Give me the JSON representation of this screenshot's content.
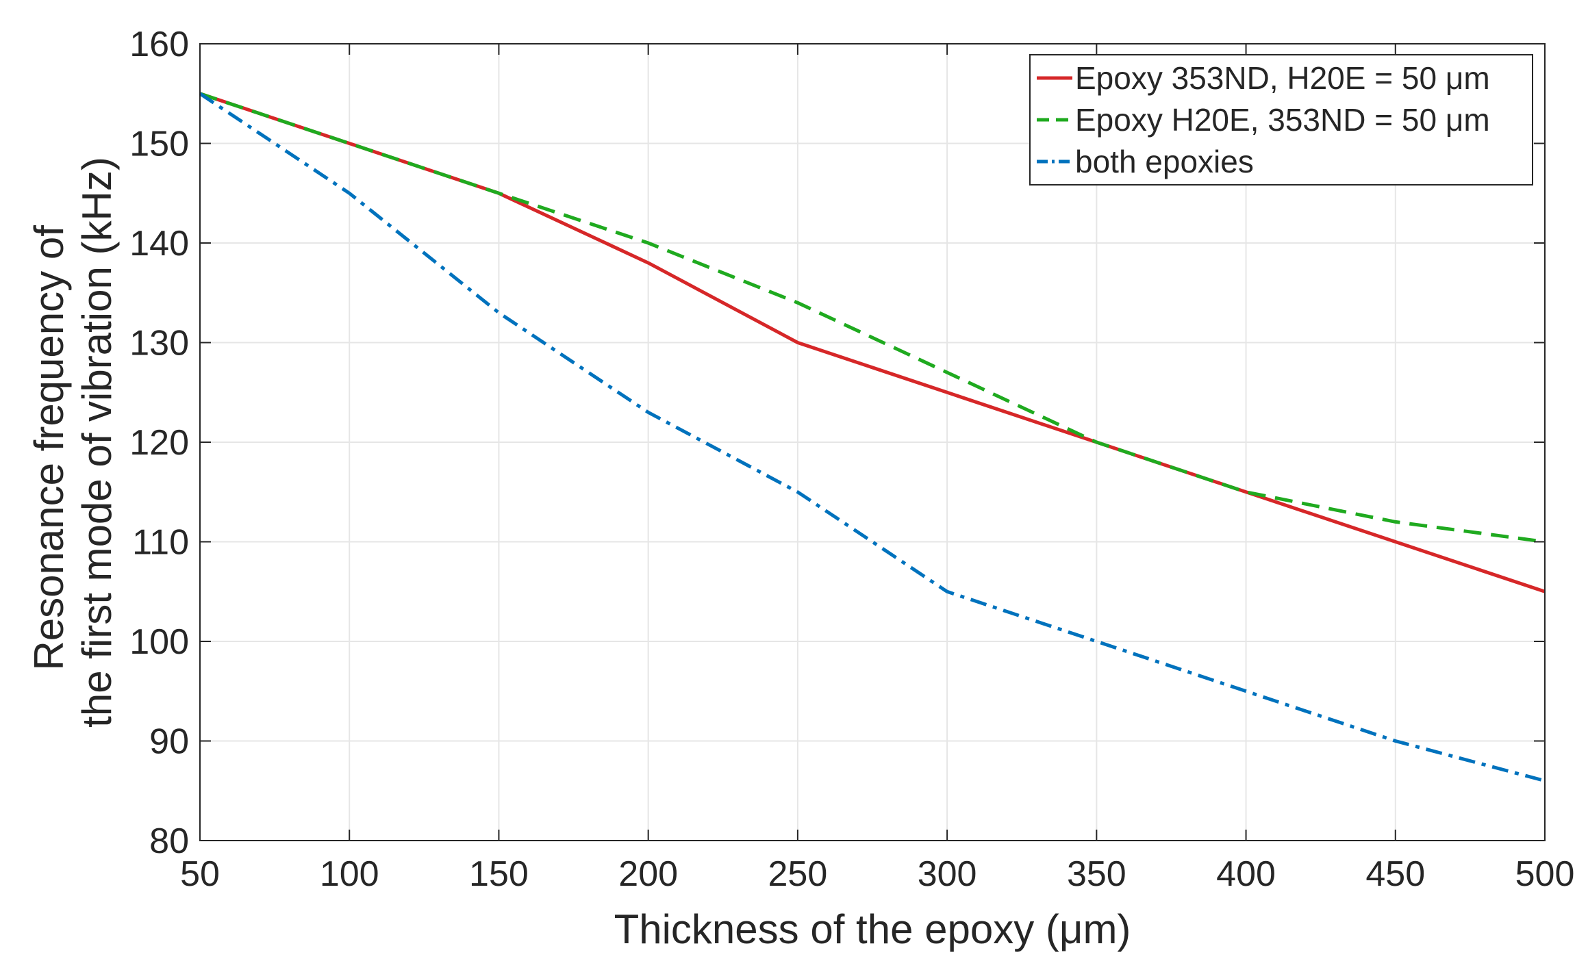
{
  "chart_data": {
    "type": "line",
    "title": "",
    "xlabel": "Thickness of the epoxy (μm)",
    "ylabel_lines": [
      "Resonance frequency of",
      "the first mode of vibration (kHz)"
    ],
    "xlim": [
      50,
      500
    ],
    "ylim": [
      80,
      160
    ],
    "xticks": [
      50,
      100,
      150,
      200,
      250,
      300,
      350,
      400,
      450,
      500
    ],
    "yticks": [
      80,
      90,
      100,
      110,
      120,
      130,
      140,
      150,
      160
    ],
    "grid": true,
    "legend_position": "top-right",
    "x": [
      50,
      100,
      150,
      200,
      250,
      300,
      350,
      400,
      450,
      500
    ],
    "series": [
      {
        "name": "Epoxy 353ND, H20E = 50 μm",
        "color": "#d62728",
        "style": "solid",
        "values": [
          155,
          150,
          145,
          138,
          130,
          125,
          120,
          115,
          110,
          105
        ]
      },
      {
        "name": "Epoxy H20E, 353ND = 50 μm",
        "color": "#1faa1f",
        "style": "dashed",
        "values": [
          155,
          150,
          145,
          140,
          134,
          127,
          120,
          115,
          112,
          110
        ]
      },
      {
        "name": "both epoxies",
        "color": "#0072bd",
        "style": "dashdot",
        "values": [
          155,
          145,
          133,
          123,
          115,
          105,
          100,
          95,
          90,
          86
        ]
      }
    ]
  }
}
